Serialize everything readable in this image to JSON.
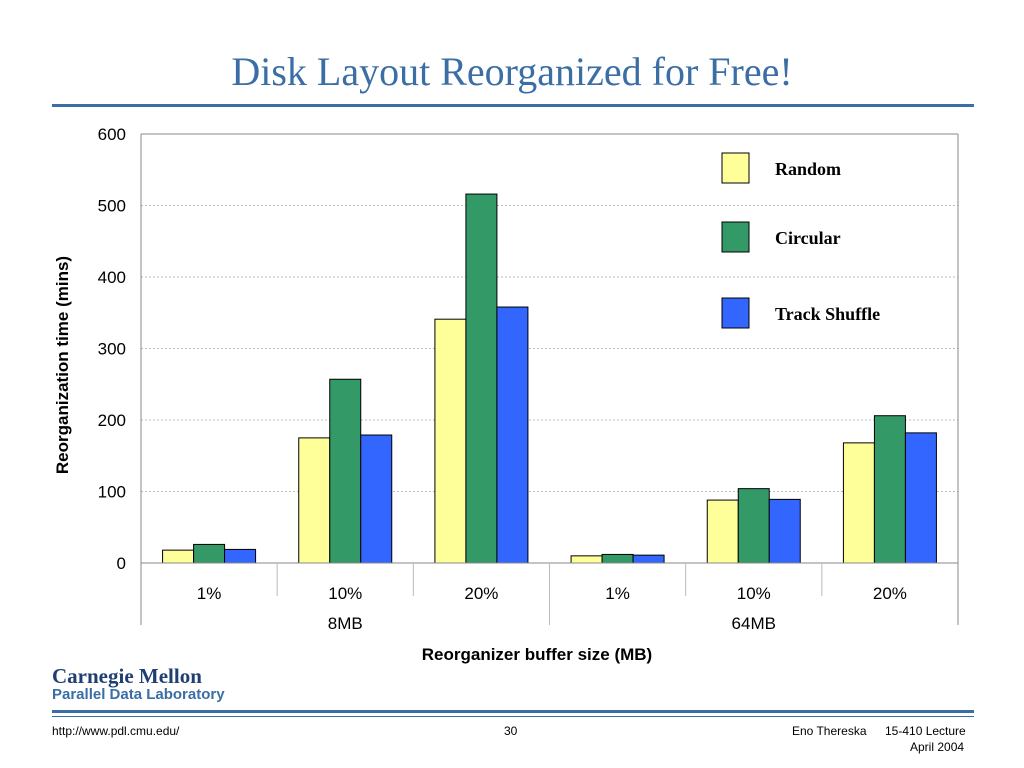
{
  "slide": {
    "title": "Disk Layout Reorganized for Free!"
  },
  "footer": {
    "url": "http://www.pdl.cmu.edu/",
    "page": "30",
    "author": "Eno Thereska",
    "course": "15-410 Lecture",
    "date": "April 2004"
  },
  "brand": {
    "line1": "Carnegie Mellon",
    "line2": "Parallel Data Laboratory"
  },
  "chart_data": {
    "type": "bar",
    "xlabel": "Reorganizer buffer size (MB)",
    "ylabel": "Reorganization time (mins)",
    "ylim": [
      0,
      600
    ],
    "yticks": [
      0,
      100,
      200,
      300,
      400,
      500,
      600
    ],
    "grid": true,
    "legend_position": "top-right",
    "categories": [
      "1%",
      "10%",
      "20%",
      "1%",
      "10%",
      "20%"
    ],
    "groups": [
      {
        "label": "8MB",
        "categories": [
          0,
          1,
          2
        ]
      },
      {
        "label": "64MB",
        "categories": [
          3,
          4,
          5
        ]
      }
    ],
    "series": [
      {
        "name": "Random",
        "color": "#ffff99",
        "values": [
          18,
          175,
          341,
          10,
          88,
          168
        ]
      },
      {
        "name": "Circular",
        "color": "#339966",
        "values": [
          26,
          257,
          516,
          12,
          104,
          206
        ]
      },
      {
        "name": "Track Shuffle",
        "color": "#3366ff",
        "values": [
          19,
          179,
          358,
          11,
          89,
          182
        ]
      }
    ]
  }
}
